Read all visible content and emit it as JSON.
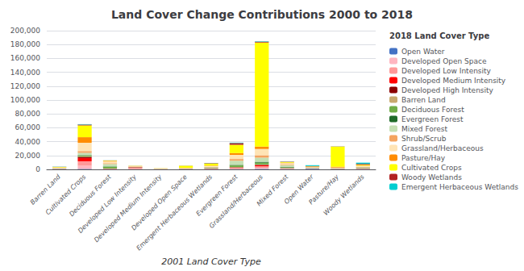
{
  "chart_data": {
    "type": "bar",
    "stacked": true,
    "title": "Land Cover Change Contributions 2000 to 2018",
    "xlabel": "2001 Land Cover Type",
    "legend_title": "2018 Land Cover Type",
    "legend": "right",
    "grid": true,
    "categories": [
      "Barren Land",
      "Cultivated Crops",
      "Deciduous Forest",
      "Developed Low Intensity",
      "Developed Medium Intensity",
      "Developed Open Space",
      "Emergent Herbaceous Wetlands",
      "Evergreen Forest",
      "Grassland/Herbaceous",
      "Mixed Forest",
      "Open Water",
      "Pasture/Hay",
      "Woody Wetlands"
    ],
    "series": [
      {
        "name": "Open Water",
        "color": "#4472C4",
        "values": [
          300,
          700,
          100,
          100,
          50,
          50,
          200,
          300,
          700,
          300,
          800,
          150,
          300
        ]
      },
      {
        "name": "Developed Open Space",
        "color": "#FFB6C1",
        "values": [
          200,
          4500,
          300,
          300,
          50,
          100,
          300,
          500,
          1200,
          400,
          200,
          200,
          300
        ]
      },
      {
        "name": "Developed Low Intensity",
        "color": "#FF9999",
        "values": [
          200,
          6500,
          400,
          1800,
          150,
          300,
          500,
          1200,
          2500,
          600,
          300,
          350,
          500
        ]
      },
      {
        "name": "Developed Medium Intensity",
        "color": "#FF0000",
        "values": [
          100,
          4500,
          150,
          600,
          100,
          150,
          300,
          700,
          1500,
          300,
          150,
          150,
          300
        ]
      },
      {
        "name": "Developed High Intensity",
        "color": "#8B0000",
        "values": [
          50,
          1800,
          80,
          300,
          30,
          80,
          150,
          300,
          700,
          150,
          80,
          80,
          150
        ]
      },
      {
        "name": "Barren Land",
        "color": "#C8A96E",
        "values": [
          100,
          600,
          100,
          100,
          50,
          50,
          100,
          250,
          600,
          150,
          100,
          50,
          100
        ]
      },
      {
        "name": "Deciduous Forest",
        "color": "#70AD47",
        "values": [
          200,
          1200,
          2500,
          150,
          80,
          150,
          600,
          2500,
          2500,
          1200,
          250,
          250,
          600
        ]
      },
      {
        "name": "Evergreen Forest",
        "color": "#1F6B2A",
        "values": [
          100,
          600,
          600,
          80,
          50,
          80,
          250,
          700,
          1200,
          600,
          100,
          100,
          250
        ]
      },
      {
        "name": "Mixed Forest",
        "color": "#C5E0B4",
        "values": [
          300,
          3500,
          3500,
          150,
          80,
          150,
          600,
          6000,
          6000,
          2500,
          350,
          350,
          600
        ]
      },
      {
        "name": "Shrub/Scrub",
        "color": "#F4A460",
        "values": [
          350,
          2500,
          1200,
          250,
          120,
          250,
          600,
          2500,
          3500,
          1000,
          350,
          350,
          600
        ]
      },
      {
        "name": "Grassland/Herbaceous",
        "color": "#FFE4B5",
        "values": [
          600,
          12000,
          2500,
          600,
          350,
          600,
          1200,
          6000,
          9000,
          1800,
          600,
          600,
          1200
        ]
      },
      {
        "name": "Pasture/Hay",
        "color": "#FF8C00",
        "values": [
          350,
          8000,
          600,
          250,
          120,
          250,
          600,
          2500,
          3500,
          700,
          350,
          1200,
          600
        ]
      },
      {
        "name": "Cultivated Crops",
        "color": "#FFFF00",
        "values": [
          600,
          17000,
          600,
          350,
          250,
          3000,
          3000,
          12000,
          150000,
          900,
          600,
          29000,
          1200
        ]
      },
      {
        "name": "Woody Wetlands",
        "color": "#B22222",
        "values": [
          200,
          1200,
          250,
          120,
          60,
          120,
          600,
          2500,
          1200,
          500,
          600,
          250,
          1200
        ]
      },
      {
        "name": "Emergent Herbaceous Wetlands",
        "color": "#00CED1",
        "values": [
          250,
          600,
          120,
          60,
          40,
          60,
          250,
          600,
          600,
          250,
          1200,
          120,
          1800
        ]
      }
    ],
    "ylim": [
      0,
      200000
    ],
    "yticks": [
      0,
      {
        "value": 20000,
        "label": "20,000"
      },
      {
        "value": 40000,
        "label": "40,000"
      },
      {
        "value": 60000,
        "label": "60,000"
      },
      {
        "value": 80000,
        "label": "80,000"
      },
      {
        "value": 100000,
        "label": "100,000"
      },
      {
        "value": 120000,
        "label": "120,000"
      },
      {
        "value": 140000,
        "label": "140,000"
      },
      {
        "value": 160000,
        "label": "160,000"
      },
      {
        "value": 180000,
        "label": "180,000"
      },
      {
        "value": 200000,
        "label": "200,000"
      }
    ]
  }
}
